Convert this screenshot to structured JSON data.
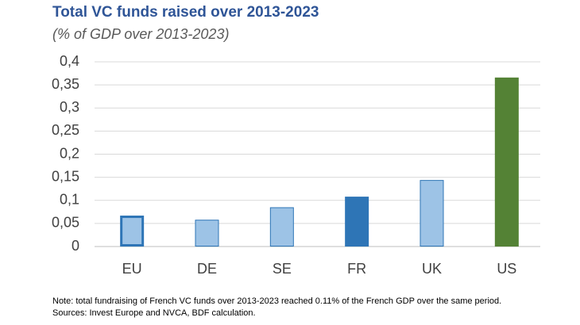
{
  "chart_data": {
    "type": "bar",
    "title": "Total VC funds raised over 2013-2023",
    "subtitle": "(% of GDP over 2013-2023)",
    "categories": [
      "EU",
      "DE",
      "SE",
      "FR",
      "UK",
      "US"
    ],
    "values": [
      0.067,
      0.058,
      0.085,
      0.108,
      0.144,
      0.366
    ],
    "colors": [
      "#9dc3e6",
      "#9dc3e6",
      "#9dc3e6",
      "#2e75b6",
      "#9dc3e6",
      "#548235"
    ],
    "edge_colors": [
      "#2e75b6",
      "#2e75b6",
      "#2e75b6",
      "#2e75b6",
      "#2e75b6",
      "#548235"
    ],
    "edge_widths": [
      3,
      1,
      1,
      1,
      1,
      1
    ],
    "ylim": [
      0,
      0.4
    ],
    "yticks": [
      0,
      {
        "value": 0.05,
        "label": "0,05"
      },
      {
        "value": 0.1,
        "label": "0,1"
      },
      {
        "value": 0.15,
        "label": "0,15"
      },
      {
        "value": 0.2,
        "label": "0,2"
      },
      {
        "value": 0.25,
        "label": "0,25"
      },
      {
        "value": 0.3,
        "label": "0,3"
      },
      {
        "value": 0.35,
        "label": "0,35"
      },
      {
        "value": 0.4,
        "label": "0,4"
      }
    ],
    "grid": true,
    "notes": [
      "Note: total fundraising of French VC funds over 2013-2023 reached 0.11% of the French GDP over the same period.",
      "Sources: Invest Europe and NVCA, BDF calculation."
    ]
  }
}
